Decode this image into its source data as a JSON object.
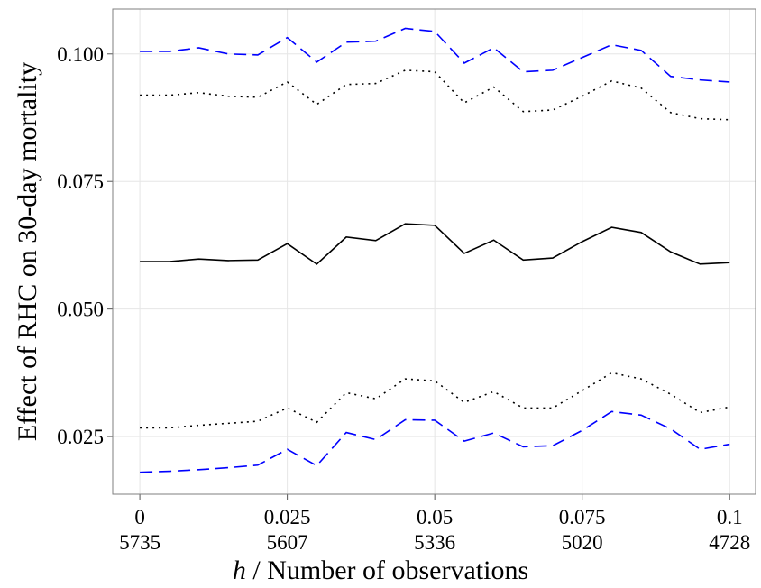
{
  "chart_data": {
    "type": "line",
    "xlabel_parts": [
      "h",
      " / Number of observations"
    ],
    "ylabel": "Effect of RHC on 30-day mortality",
    "x": [
      0,
      0.005,
      0.01,
      0.015,
      0.02,
      0.025,
      0.03,
      0.035,
      0.04,
      0.045,
      0.05,
      0.055,
      0.06,
      0.065,
      0.07,
      0.075,
      0.08,
      0.085,
      0.09,
      0.095,
      0.1
    ],
    "xlim": [
      -0.0046,
      0.1044
    ],
    "xticks": [
      0,
      0.025,
      0.05,
      0.075,
      0.1
    ],
    "xtick_sublabels": [
      5735,
      5607,
      5336,
      5020,
      4728
    ],
    "ylim": [
      0.0137,
      0.1088
    ],
    "yticks": [
      {
        "value": 0.025,
        "label": "0.025"
      },
      {
        "value": 0.05,
        "label": "0.050"
      },
      {
        "value": 0.075,
        "label": "0.075"
      },
      {
        "value": 0.1,
        "label": "0.100"
      }
    ],
    "grid": true,
    "series": [
      {
        "color": "#0000ff",
        "style": "dashed",
        "values": [
          0.1005,
          0.1005,
          0.1012,
          0.1,
          0.0998,
          0.1032,
          0.0984,
          0.1023,
          0.1025,
          0.105,
          0.1044,
          0.0982,
          0.1012,
          0.0965,
          0.0968,
          0.0993,
          0.1018,
          0.1007,
          0.0956,
          0.0949,
          0.0945
        ]
      },
      {
        "color": "#000000",
        "style": "dotted",
        "values": [
          0.0919,
          0.0919,
          0.0924,
          0.0917,
          0.0915,
          0.0945,
          0.0901,
          0.094,
          0.0942,
          0.0968,
          0.0965,
          0.0904,
          0.0935,
          0.0887,
          0.089,
          0.0917,
          0.0947,
          0.0933,
          0.0885,
          0.0873,
          0.0871
        ]
      },
      {
        "color": "#000000",
        "style": "solid",
        "values": [
          0.0593,
          0.0593,
          0.0598,
          0.0595,
          0.0596,
          0.0628,
          0.0588,
          0.0641,
          0.0634,
          0.0667,
          0.0664,
          0.0609,
          0.0635,
          0.0596,
          0.06,
          0.0632,
          0.066,
          0.065,
          0.0612,
          0.0588,
          0.0591
        ]
      },
      {
        "color": "#000000",
        "style": "dotted",
        "values": [
          0.0267,
          0.0267,
          0.0272,
          0.0276,
          0.028,
          0.0306,
          0.0278,
          0.0336,
          0.0324,
          0.0363,
          0.0359,
          0.0317,
          0.0338,
          0.0306,
          0.0306,
          0.034,
          0.0375,
          0.0363,
          0.0333,
          0.0297,
          0.0308
        ]
      },
      {
        "color": "#0000ff",
        "style": "dashed",
        "values": [
          0.018,
          0.0182,
          0.0185,
          0.0189,
          0.0194,
          0.0225,
          0.0193,
          0.0258,
          0.0244,
          0.0283,
          0.0282,
          0.0241,
          0.0257,
          0.023,
          0.0232,
          0.0262,
          0.0299,
          0.0292,
          0.0265,
          0.0225,
          0.0235
        ]
      }
    ]
  }
}
